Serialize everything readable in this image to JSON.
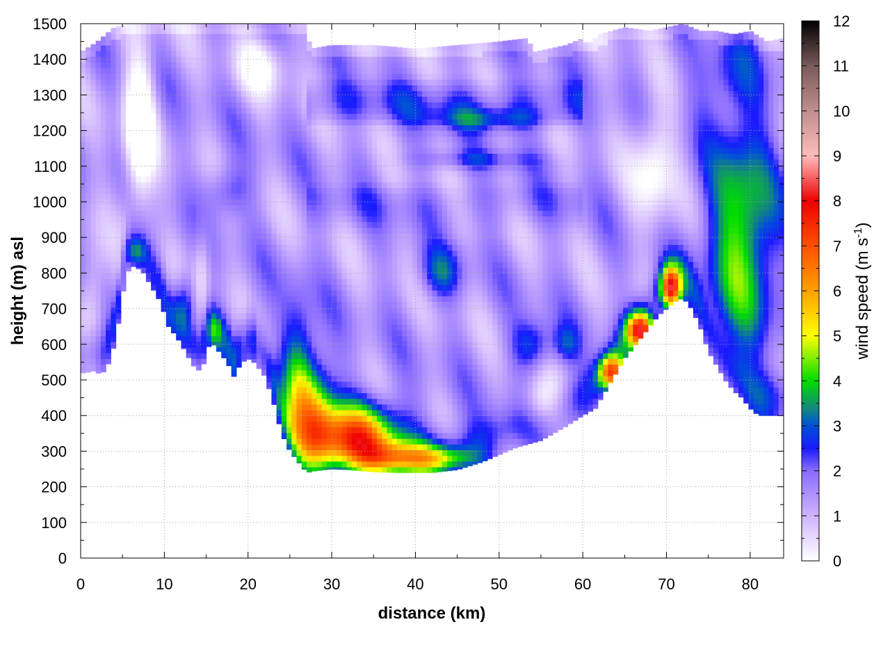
{
  "chart_data": {
    "type": "heatmap",
    "title": "",
    "xlabel": "distance (km)",
    "ylabel": "height (m) asl",
    "colorbar_label": "wind speed (m s",
    "colorbar_label_sup": "-1",
    "colorbar_label_close": ")",
    "xlim": [
      0,
      84
    ],
    "ylim": [
      0,
      1500
    ],
    "clim": [
      0,
      12
    ],
    "x_ticks": [
      "0",
      "10",
      "20",
      "30",
      "40",
      "50",
      "60",
      "70",
      "80"
    ],
    "y_ticks": [
      "0",
      "100",
      "200",
      "300",
      "400",
      "500",
      "600",
      "700",
      "800",
      "900",
      "1000",
      "1100",
      "1200",
      "1300",
      "1400",
      "1500"
    ],
    "c_ticks": [
      "0",
      "1",
      "2",
      "3",
      "4",
      "5",
      "6",
      "7",
      "8",
      "9",
      "10",
      "11",
      "12"
    ],
    "grid": true,
    "colormap": [
      {
        "v": 0,
        "c": "#ffffff"
      },
      {
        "v": 1,
        "c": "#cfb4ff"
      },
      {
        "v": 2,
        "c": "#8a6cff"
      },
      {
        "v": 2.5,
        "c": "#1a1aff"
      },
      {
        "v": 3,
        "c": "#0050d8"
      },
      {
        "v": 3.4,
        "c": "#138a7a"
      },
      {
        "v": 4,
        "c": "#00dd00"
      },
      {
        "v": 5,
        "c": "#ffff00"
      },
      {
        "v": 6,
        "c": "#ffa000"
      },
      {
        "v": 7,
        "c": "#ff5000"
      },
      {
        "v": 8,
        "c": "#ee0000"
      },
      {
        "v": 9,
        "c": "#ffbbbb"
      },
      {
        "v": 10,
        "c": "#c08e8e"
      },
      {
        "v": 11,
        "c": "#7a5a5a"
      },
      {
        "v": 12,
        "c": "#000000"
      }
    ],
    "terrain": {
      "x": [
        0,
        0.6,
        1.5,
        2.5,
        3.3,
        4.2,
        5,
        5.8,
        6.5,
        7.5,
        8.5,
        9.5,
        10.5,
        11.5,
        12.5,
        13.3,
        14,
        14.7,
        15.5,
        16.5,
        17.5,
        18.3,
        19,
        19.8,
        20.5,
        21.2,
        22,
        23,
        24,
        25,
        26,
        27,
        28,
        30,
        32,
        35,
        38,
        40,
        42,
        45,
        48,
        50,
        52,
        55,
        58,
        60,
        61.5,
        63,
        65,
        67,
        69,
        70,
        71,
        72,
        73,
        74,
        75,
        76,
        77,
        78,
        79,
        80,
        81,
        82,
        83,
        84
      ],
      "y": [
        520,
        520,
        525,
        515,
        545,
        610,
        740,
        815,
        820,
        800,
        760,
        720,
        650,
        620,
        580,
        545,
        525,
        545,
        610,
        580,
        550,
        510,
        540,
        560,
        555,
        535,
        510,
        440,
        350,
        300,
        270,
        240,
        245,
        250,
        248,
        242,
        240,
        240,
        240,
        248,
        270,
        290,
        310,
        330,
        370,
        400,
        420,
        480,
        560,
        620,
        680,
        700,
        720,
        730,
        700,
        650,
        580,
        540,
        500,
        470,
        450,
        420,
        400,
        400,
        400,
        400
      ]
    },
    "top_boundary": {
      "x": [
        0,
        2,
        4,
        6,
        8,
        10,
        12,
        14,
        16,
        18,
        20,
        22,
        24,
        26,
        26.8,
        27.5,
        30,
        35,
        40,
        45,
        50,
        53.5,
        54,
        58,
        60,
        60.5,
        62,
        65,
        68,
        70,
        72,
        74,
        76,
        78,
        80,
        82,
        84
      ],
      "y": [
        1420,
        1450,
        1490,
        1500,
        1500,
        1500,
        1500,
        1500,
        1500,
        1500,
        1500,
        1500,
        1500,
        1500,
        1500,
        1430,
        1440,
        1440,
        1430,
        1440,
        1450,
        1460,
        1420,
        1440,
        1460,
        1440,
        1470,
        1490,
        1480,
        1490,
        1500,
        1480,
        1480,
        1470,
        1480,
        1450,
        1460
      ]
    },
    "features": [
      {
        "x": 33,
        "y": 350,
        "sx": 5,
        "sy": 90,
        "v": 4.8
      },
      {
        "x": 28,
        "y": 400,
        "sx": 2.5,
        "sy": 150,
        "v": 3.2
      },
      {
        "x": 26,
        "y": 520,
        "sx": 2,
        "sy": 200,
        "v": 2.2
      },
      {
        "x": 38,
        "y": 280,
        "sx": 5,
        "sy": 45,
        "v": 3.0
      },
      {
        "x": 44,
        "y": 280,
        "sx": 4,
        "sy": 35,
        "v": 2.0
      },
      {
        "x": 12.5,
        "y": 720,
        "sx": 1.2,
        "sy": 80,
        "v": 1.6
      },
      {
        "x": 6.5,
        "y": 860,
        "sx": 1.2,
        "sy": 40,
        "v": 1.4
      },
      {
        "x": 17.5,
        "y": 1030,
        "sx": 2.5,
        "sy": 70,
        "v": 1.2
      },
      {
        "x": 16,
        "y": 640,
        "sx": 0.8,
        "sy": 50,
        "v": 1.5
      },
      {
        "x": 20.5,
        "y": 620,
        "sx": 0.6,
        "sy": 80,
        "v": 0.8
      },
      {
        "x": 49,
        "y": 1230,
        "sx": 7,
        "sy": 35,
        "v": 1.4
      },
      {
        "x": 47,
        "y": 1120,
        "sx": 7,
        "sy": 25,
        "v": 0.9
      },
      {
        "x": 43,
        "y": 800,
        "sx": 2.5,
        "sy": 70,
        "v": 1.5
      },
      {
        "x": 54,
        "y": 600,
        "sx": 2.5,
        "sy": 70,
        "v": 1.6
      },
      {
        "x": 58,
        "y": 600,
        "sx": 1.5,
        "sy": 50,
        "v": 1.2
      },
      {
        "x": 67,
        "y": 640,
        "sx": 1.6,
        "sy": 50,
        "v": 6.0
      },
      {
        "x": 63.5,
        "y": 520,
        "sx": 1.6,
        "sy": 50,
        "v": 5.5
      },
      {
        "x": 70.5,
        "y": 760,
        "sx": 1.2,
        "sy": 60,
        "v": 5.5
      },
      {
        "x": 79,
        "y": 900,
        "sx": 4,
        "sy": 320,
        "v": 3.0
      },
      {
        "x": 77,
        "y": 1350,
        "sx": 4,
        "sy": 120,
        "v": 1.0
      }
    ],
    "white_zones": [
      {
        "x": 7,
        "y": 1200,
        "sx": 1.8,
        "sy": 220,
        "v": -2.5
      },
      {
        "x": 1.5,
        "y": 720,
        "sx": 1.5,
        "sy": 150,
        "v": -1.2
      },
      {
        "x": 14.5,
        "y": 820,
        "sx": 1,
        "sy": 120,
        "v": -1.0
      },
      {
        "x": 55,
        "y": 420,
        "sx": 2.5,
        "sy": 80,
        "v": -1.8
      },
      {
        "x": 68.5,
        "y": 1100,
        "sx": 2.5,
        "sy": 160,
        "v": -1.6
      },
      {
        "x": 21.5,
        "y": 1380,
        "sx": 3,
        "sy": 80,
        "v": -1.4
      }
    ]
  }
}
